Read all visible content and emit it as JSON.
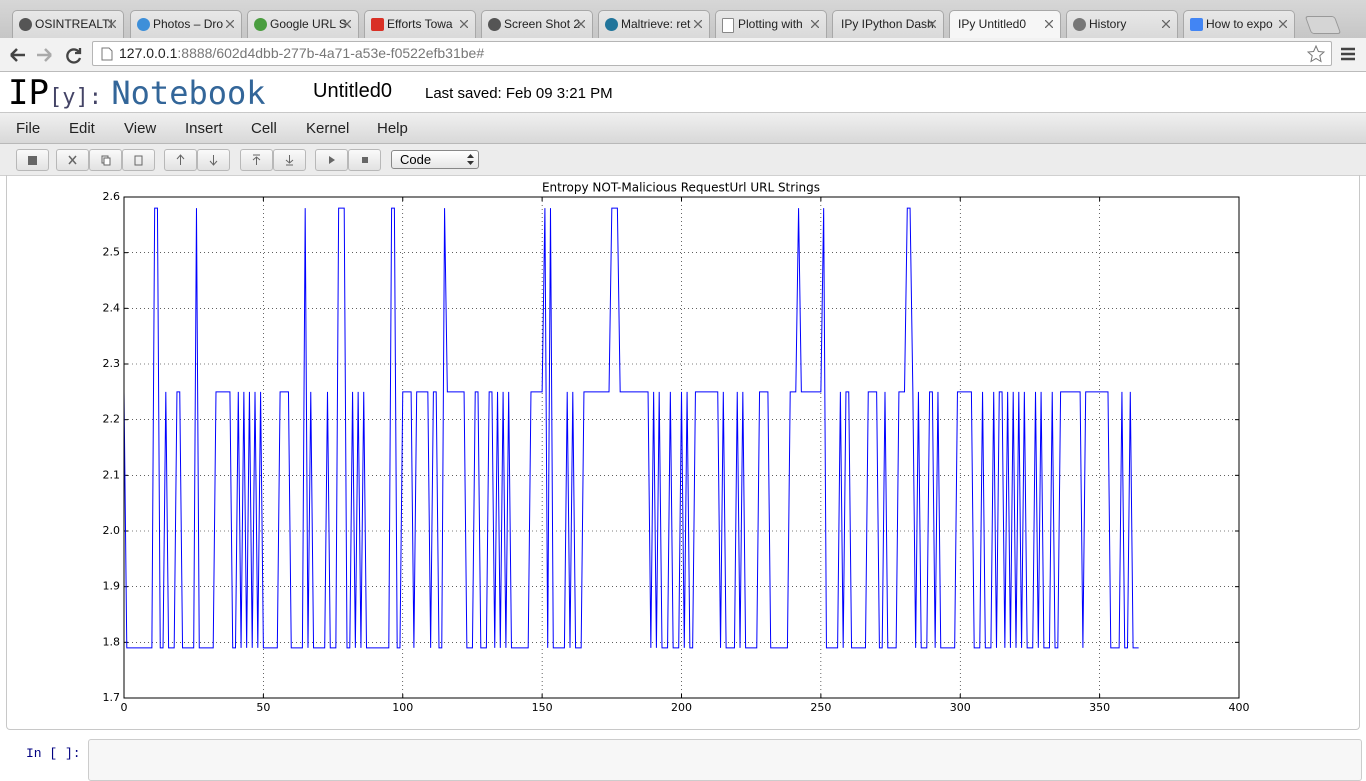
{
  "browser": {
    "tabs": [
      "OSINTREALTI",
      "Photos – Dro",
      "Google URL S",
      "Efforts Towa",
      "Screen Shot 2",
      "Maltrieve: ret",
      "Plotting with",
      "IPy IPython Dash",
      "IPy Untitled0",
      "History",
      "How to expo"
    ],
    "url": {
      "host": "127.0.0.1",
      "rest": ":8888/602d4dbb-277b-4a71-a53e-f0522efb31be#"
    }
  },
  "notebook": {
    "logo": {
      "ip": "IP",
      "y": "[y]:",
      "word": "Notebook"
    },
    "name": "Untitled0",
    "saved": "Last saved: Feb 09 3:21 PM",
    "menu": [
      "File",
      "Edit",
      "View",
      "Insert",
      "Cell",
      "Kernel",
      "Help"
    ],
    "cell_type": "Code",
    "prompt": "In [ ]:"
  },
  "chart_data": {
    "type": "line",
    "title": "Entropy NOT-Malicious RequestUrl URL Strings",
    "color": "#0000ff",
    "grid": true,
    "xlim": [
      0,
      400
    ],
    "xticks": [
      0,
      50,
      100,
      150,
      200,
      250,
      300,
      350,
      400
    ],
    "ylim": [
      1.7,
      2.6
    ],
    "yticks": [
      1.7,
      1.8,
      1.9,
      {
        "value": 2,
        "label": "2.0"
      },
      2.1,
      2.2,
      2.3,
      2.4,
      2.5,
      2.6
    ],
    "x": [
      0,
      1,
      2,
      3,
      4,
      5,
      6,
      7,
      8,
      9,
      10,
      11,
      12,
      13,
      14,
      15,
      16,
      17,
      18,
      19,
      20,
      21,
      22,
      23,
      24,
      25,
      26,
      27,
      28,
      29,
      30,
      31,
      32,
      33,
      34,
      35,
      36,
      37,
      38,
      39,
      40,
      41,
      42,
      43,
      44,
      45,
      46,
      47,
      48,
      49,
      50,
      51,
      52,
      53,
      54,
      55,
      56,
      57,
      58,
      59,
      60,
      61,
      62,
      63,
      64,
      65,
      66,
      67,
      68,
      69,
      70,
      71,
      72,
      73,
      74,
      75,
      76,
      77,
      78,
      79,
      80,
      81,
      82,
      83,
      84,
      85,
      86,
      87,
      88,
      89,
      90,
      91,
      92,
      93,
      94,
      95,
      96,
      97,
      98,
      99,
      100,
      101,
      102,
      103,
      104,
      105,
      106,
      107,
      108,
      109,
      110,
      111,
      112,
      113,
      114,
      115,
      116,
      117,
      118,
      119,
      120,
      121,
      122,
      123,
      124,
      125,
      126,
      127,
      128,
      129,
      130,
      131,
      132,
      133,
      134,
      135,
      136,
      137,
      138,
      139,
      140,
      141,
      142,
      143,
      144,
      145,
      146,
      147,
      148,
      149,
      150,
      151,
      152,
      153,
      154,
      155,
      156,
      157,
      158,
      159,
      160,
      161,
      162,
      163,
      164,
      165,
      166,
      167,
      168,
      169,
      170,
      171,
      172,
      173,
      174,
      175,
      176,
      177,
      178,
      179,
      180,
      181,
      182,
      183,
      184,
      185,
      186,
      187,
      188,
      189,
      190,
      191,
      192,
      193,
      194,
      195,
      196,
      197,
      198,
      199,
      200,
      201,
      202,
      203,
      204,
      205,
      206,
      207,
      208,
      209,
      210,
      211,
      212,
      213,
      214,
      215,
      216,
      217,
      218,
      219,
      220,
      221,
      222,
      223,
      224,
      225,
      226,
      227,
      228,
      229,
      230,
      231,
      232,
      233,
      234,
      235,
      236,
      237,
      238,
      239,
      240,
      241,
      242,
      243,
      244,
      245,
      246,
      247,
      248,
      249,
      250,
      251,
      252,
      253,
      254,
      255,
      256,
      257,
      258,
      259,
      260,
      261,
      262,
      263,
      264,
      265,
      266,
      267,
      268,
      269,
      270,
      271,
      272,
      273,
      274,
      275,
      276,
      277,
      278,
      279,
      280,
      281,
      282,
      283,
      284,
      285,
      286,
      287,
      288,
      289,
      290,
      291,
      292,
      293,
      294,
      295,
      296,
      297,
      298,
      299,
      300,
      301,
      302,
      303,
      304,
      305,
      306,
      307,
      308,
      309,
      310,
      311,
      312,
      313,
      314,
      315,
      316,
      317,
      318,
      319,
      320,
      321,
      322,
      323,
      324,
      325,
      326,
      327,
      328,
      329,
      330,
      331,
      332,
      333,
      334,
      335,
      336,
      337,
      338,
      339,
      340,
      341,
      342,
      343,
      344,
      345,
      346,
      347,
      348,
      349,
      350,
      351,
      352,
      353,
      354,
      355,
      356,
      357,
      358,
      359,
      360,
      361,
      362,
      363,
      364
    ],
    "values": [
      2.25,
      1.79,
      1.79,
      1.79,
      1.79,
      1.79,
      1.79,
      1.79,
      1.79,
      1.79,
      1.79,
      2.58,
      2.58,
      1.79,
      1.79,
      2.25,
      1.79,
      1.79,
      1.79,
      2.25,
      2.25,
      1.79,
      1.79,
      1.79,
      1.79,
      1.79,
      2.58,
      1.79,
      1.79,
      1.79,
      1.79,
      1.79,
      1.79,
      2.25,
      2.25,
      2.25,
      2.25,
      2.25,
      2.25,
      1.79,
      1.79,
      2.25,
      1.79,
      2.25,
      1.79,
      2.25,
      1.79,
      2.25,
      1.79,
      2.25,
      1.79,
      1.79,
      1.79,
      1.79,
      1.79,
      1.79,
      2.25,
      2.25,
      2.25,
      2.25,
      1.79,
      1.79,
      1.79,
      1.79,
      1.79,
      2.58,
      1.79,
      2.25,
      1.79,
      1.79,
      1.79,
      1.79,
      1.79,
      2.25,
      1.79,
      1.79,
      1.79,
      2.58,
      2.58,
      2.58,
      1.79,
      1.79,
      2.25,
      1.79,
      2.25,
      1.79,
      2.25,
      1.79,
      1.79,
      1.79,
      1.79,
      1.79,
      1.79,
      1.79,
      1.79,
      1.79,
      2.58,
      2.58,
      1.79,
      1.79,
      2.25,
      2.25,
      2.25,
      2.25,
      1.79,
      2.25,
      2.25,
      2.25,
      2.25,
      2.25,
      1.79,
      2.25,
      2.25,
      1.79,
      1.79,
      2.58,
      2.25,
      2.25,
      2.25,
      2.25,
      2.25,
      2.25,
      2.25,
      1.79,
      1.79,
      1.79,
      2.25,
      2.25,
      1.79,
      1.79,
      1.79,
      2.25,
      2.25,
      1.79,
      2.25,
      1.79,
      2.25,
      1.79,
      2.25,
      1.79,
      1.79,
      1.79,
      1.79,
      1.79,
      1.79,
      1.79,
      2.25,
      2.25,
      2.25,
      2.25,
      2.25,
      2.58,
      1.79,
      2.58,
      1.79,
      1.79,
      1.79,
      1.79,
      1.79,
      2.25,
      1.79,
      2.25,
      1.79,
      1.79,
      1.79,
      2.25,
      2.25,
      2.25,
      2.25,
      2.25,
      2.25,
      2.25,
      2.25,
      2.25,
      2.25,
      2.58,
      2.58,
      2.58,
      2.25,
      2.25,
      2.25,
      2.25,
      2.25,
      2.25,
      2.25,
      2.25,
      2.25,
      2.25,
      2.25,
      1.79,
      2.25,
      1.79,
      2.25,
      1.79,
      1.79,
      1.79,
      2.25,
      1.79,
      1.79,
      1.79,
      2.25,
      1.79,
      2.25,
      1.79,
      1.79,
      2.25,
      2.25,
      2.25,
      2.25,
      2.25,
      2.25,
      2.25,
      2.25,
      2.25,
      1.79,
      2.25,
      1.79,
      1.79,
      1.79,
      1.79,
      2.25,
      1.79,
      2.25,
      1.79,
      1.79,
      1.79,
      1.79,
      1.79,
      2.25,
      2.25,
      2.25,
      2.25,
      1.79,
      1.79,
      1.79,
      1.79,
      1.79,
      1.79,
      1.79,
      2.25,
      2.25,
      2.25,
      2.58,
      2.25,
      2.25,
      2.25,
      2.25,
      2.25,
      2.25,
      2.25,
      2.25,
      2.58,
      1.79,
      1.79,
      1.79,
      1.79,
      1.79,
      2.25,
      1.79,
      2.25,
      2.25,
      1.79,
      1.79,
      1.79,
      1.79,
      1.79,
      1.79,
      2.25,
      2.25,
      2.25,
      2.25,
      1.79,
      1.79,
      2.25,
      1.79,
      1.79,
      1.79,
      1.79,
      2.25,
      2.25,
      2.25,
      2.58,
      2.58,
      2.25,
      1.79,
      2.25,
      1.79,
      1.79,
      1.79,
      2.25,
      2.25,
      1.79,
      2.25,
      1.79,
      1.79,
      1.79,
      1.79,
      1.79,
      1.79,
      2.25,
      2.25,
      2.25,
      2.25,
      2.25,
      2.25,
      1.79,
      1.79,
      1.79,
      2.25,
      1.79,
      1.79,
      1.79,
      2.25,
      1.79,
      2.25,
      2.25,
      1.79,
      2.25,
      1.79,
      2.25,
      1.79,
      2.25,
      1.79,
      2.25,
      1.79,
      1.79,
      1.79,
      2.25,
      1.79,
      2.25,
      1.79,
      1.79,
      1.79,
      2.25,
      1.79,
      1.79,
      2.25,
      2.25,
      2.25,
      2.25,
      2.25,
      2.25,
      2.25,
      2.25,
      1.79,
      2.25,
      2.25,
      2.25,
      2.25,
      2.25,
      2.25,
      2.25,
      2.25,
      2.25,
      1.79,
      1.79,
      1.79,
      1.79,
      2.25,
      1.79,
      1.79,
      2.25,
      1.79,
      1.79,
      1.79
    ]
  }
}
